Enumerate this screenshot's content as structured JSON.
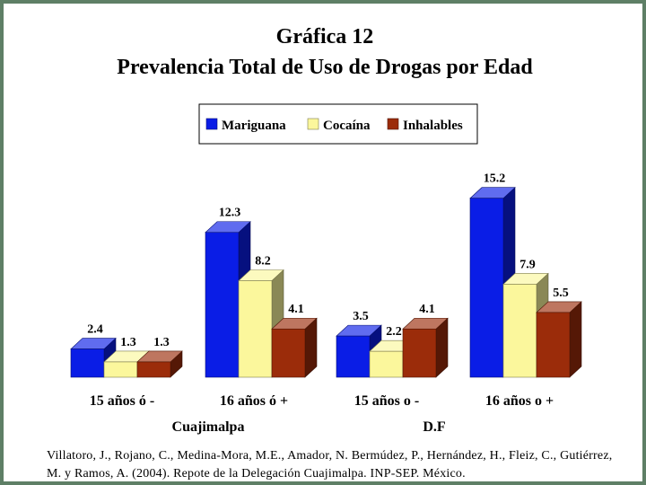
{
  "chart_data": {
    "type": "bar",
    "title": "Gráfica 12",
    "subtitle": "Prevalencia Total de Uso de Drogas por Edad",
    "categories": [
      "15 años ó -",
      "16 años ó +",
      "15 años o -",
      "16 años o +"
    ],
    "group_labels": [
      {
        "label": "Cuajimalpa",
        "categories": [
          0,
          1
        ]
      },
      {
        "label": "D.F",
        "categories": [
          2,
          3
        ]
      }
    ],
    "series": [
      {
        "name": "Mariguana",
        "values": [
          2.4,
          12.3,
          3.5,
          15.2
        ],
        "color": "#0a1de6"
      },
      {
        "name": "Cocaína",
        "values": [
          1.3,
          8.2,
          2.2,
          7.9
        ],
        "color": "#fbf79c"
      },
      {
        "name": "Inhalables",
        "values": [
          1.3,
          4.1,
          4.1,
          5.5
        ],
        "color": "#9b2c0a"
      }
    ],
    "ylim": [
      0,
      16
    ],
    "grid": false,
    "three_d": true,
    "legend_position": "top-center"
  },
  "citation": "Villatoro, J., Rojano, C., Medina-Mora, M.E., Amador, N. Bermúdez, P., Hernández, H., Fleiz, C., Gutiérrez, M. y Ramos, A. (2004). Repote de la Delegación Cuajimalpa. INP-SEP. México."
}
